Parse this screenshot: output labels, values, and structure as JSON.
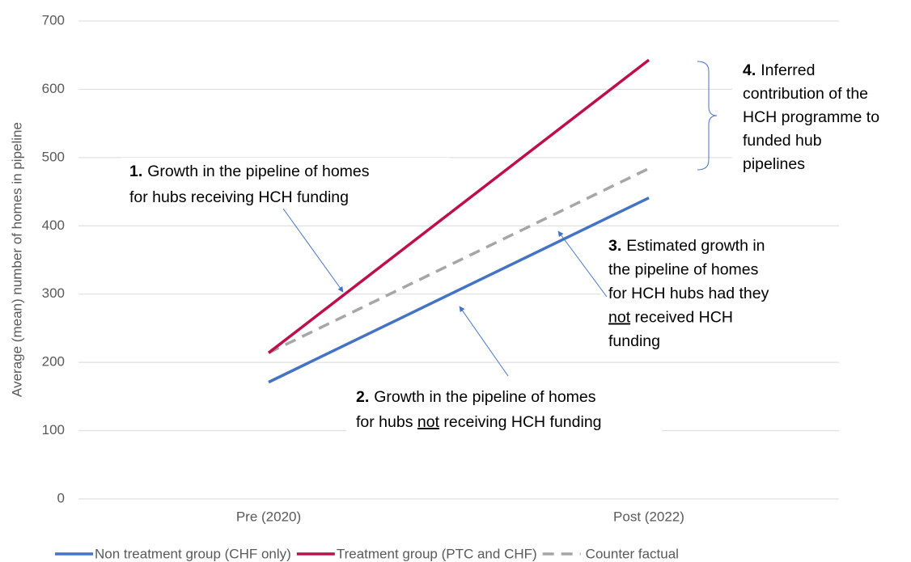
{
  "chart_data": {
    "type": "line",
    "y_label": "Average (mean) number of homes in pipeline",
    "categories": [
      "Pre (2020)",
      "Post (2022)"
    ],
    "series": [
      {
        "name": "Non treatment group (CHF only)",
        "color": "#4472c4",
        "values": [
          171,
          441
        ]
      },
      {
        "name": "Treatment group (PTC and CHF)",
        "color": "#be0f4a",
        "values": [
          214,
          643
        ]
      },
      {
        "name": "Counter factual",
        "color": "#a6a6a6",
        "dashed": true,
        "values": [
          214,
          484
        ]
      }
    ],
    "ylim": [
      0,
      700
    ],
    "yticks": [
      0,
      100,
      200,
      300,
      400,
      500,
      600,
      700
    ],
    "grid": true,
    "legend": "bottom",
    "annotations": [
      {
        "label": "1.",
        "lines": [
          [
            "Growth in the pipeline of homes"
          ],
          [
            "for hubs receiving HCH funding"
          ]
        ]
      },
      {
        "label": "2.",
        "lines": [
          [
            "Growth in the pipeline of homes"
          ],
          [
            "for hubs ",
            {
              "text": "not",
              "underline": true
            },
            " receiving HCH funding"
          ]
        ]
      },
      {
        "label": "3.",
        "lines": [
          [
            "Estimated growth in"
          ],
          [
            "the pipeline of homes"
          ],
          [
            "for HCH hubs had they"
          ],
          [
            {
              "text": "not",
              "underline": true
            },
            " received HCH"
          ],
          [
            "funding"
          ]
        ]
      },
      {
        "label": "4.",
        "lines": [
          [
            "Inferred"
          ],
          [
            "contribution of the"
          ],
          [
            "HCH programme to"
          ],
          [
            "funded hub"
          ],
          [
            "pipelines"
          ]
        ]
      }
    ]
  }
}
